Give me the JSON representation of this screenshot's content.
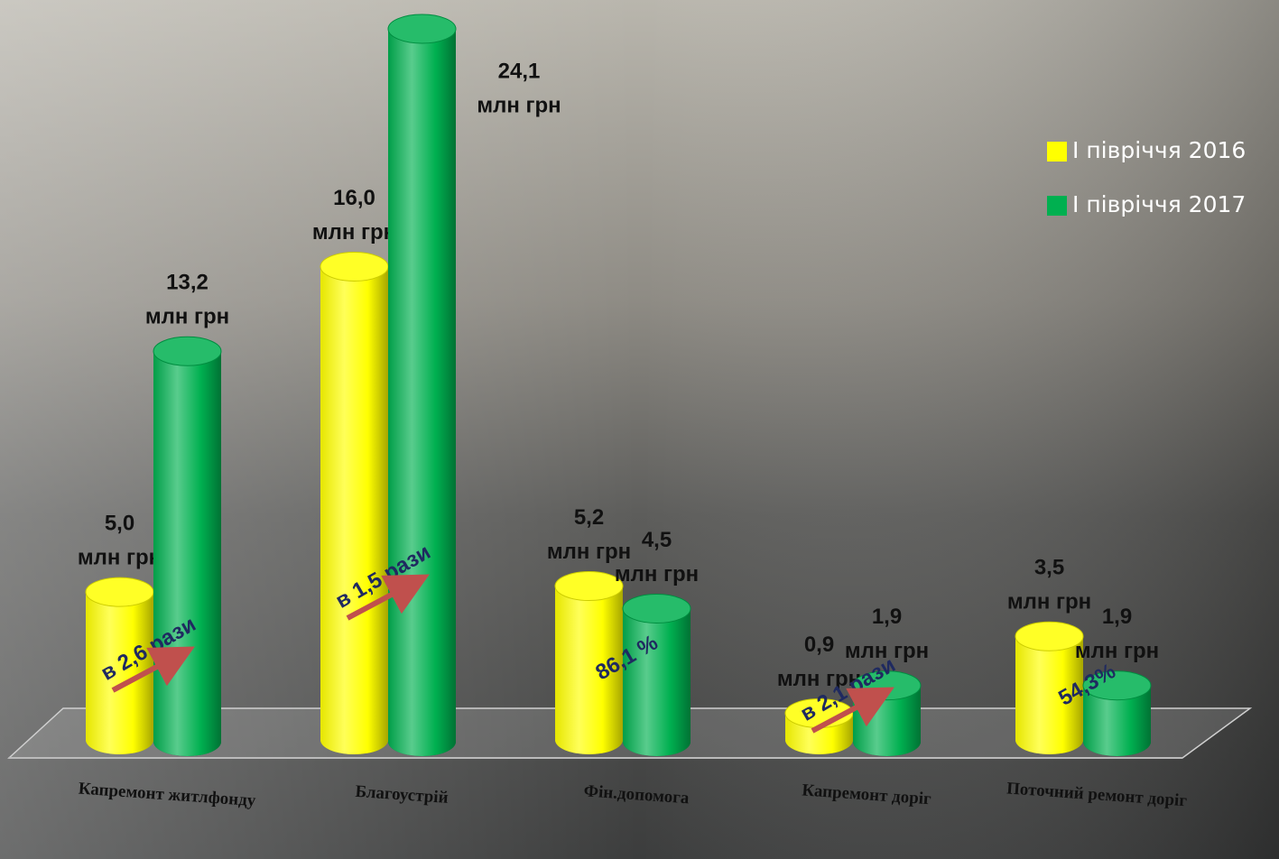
{
  "chart_data": {
    "type": "bar",
    "categories": [
      "Капремонт житлфонду",
      "Благоустрій",
      "Фін.допомога",
      "Капремонт доріг",
      "Поточний ремонт доріг"
    ],
    "series": [
      {
        "name": "І півріччя 2016",
        "color": "#ffff00",
        "values": [
          5.0,
          16.0,
          5.2,
          0.9,
          3.5
        ],
        "value_labels": [
          "5,0",
          "16,0",
          "5,2",
          "0,9",
          "3,5"
        ]
      },
      {
        "name": "І півріччя 2017",
        "color": "#00b050",
        "values": [
          13.2,
          24.1,
          4.5,
          1.9,
          1.9
        ],
        "value_labels": [
          "13,2",
          "24,1",
          "4,5",
          "1,9",
          "1,9"
        ]
      }
    ],
    "unit_label": "млн грн",
    "annotations": [
      "в 2,6 рази",
      "в 1,5 рази",
      "86,1 %",
      "в 2,1 рази",
      "54,3%"
    ],
    "legend": "right"
  }
}
